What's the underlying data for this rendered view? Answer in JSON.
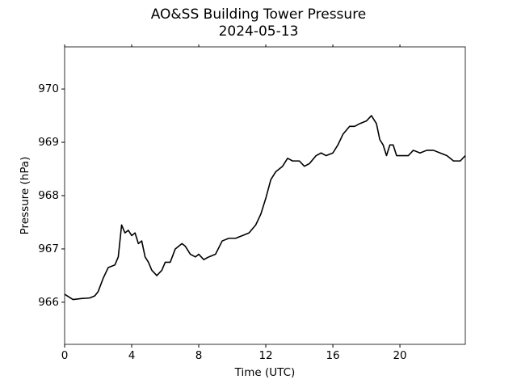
{
  "chart_data": {
    "type": "line",
    "title": "AO&SS Building Tower Pressure",
    "subtitle": "2024-05-13",
    "xlabel": "Time (UTC)",
    "ylabel": "Pressure (hPa)",
    "xlim": [
      0,
      23.9
    ],
    "ylim": [
      965.21,
      970.79
    ],
    "xticks": [
      0,
      4,
      8,
      12,
      16,
      20
    ],
    "yticks": [
      966,
      967,
      968,
      969,
      970
    ],
    "x": [
      0,
      0.25,
      0.5,
      1.0,
      1.5,
      1.8,
      2.0,
      2.3,
      2.6,
      3.0,
      3.2,
      3.4,
      3.6,
      3.8,
      4.0,
      4.2,
      4.4,
      4.6,
      4.8,
      5.0,
      5.2,
      5.5,
      5.8,
      6.0,
      6.3,
      6.6,
      7.0,
      7.2,
      7.5,
      7.8,
      8.0,
      8.3,
      8.6,
      9.0,
      9.4,
      9.8,
      10.2,
      10.6,
      11.0,
      11.4,
      11.7,
      12.0,
      12.3,
      12.6,
      13.0,
      13.3,
      13.6,
      14.0,
      14.3,
      14.6,
      15.0,
      15.3,
      15.6,
      16.0,
      16.3,
      16.6,
      17.0,
      17.3,
      17.6,
      18.0,
      18.3,
      18.6,
      18.8,
      19.0,
      19.2,
      19.4,
      19.6,
      19.8,
      20.2,
      20.5,
      20.8,
      21.2,
      21.6,
      22.0,
      22.4,
      22.8,
      23.2,
      23.6,
      23.9
    ],
    "series": [
      {
        "color": "#000000",
        "values": [
          966.15,
          966.1,
          966.05,
          966.07,
          966.08,
          966.12,
          966.2,
          966.45,
          966.65,
          966.7,
          966.85,
          967.45,
          967.3,
          967.35,
          967.25,
          967.3,
          967.1,
          967.15,
          966.85,
          966.75,
          966.6,
          966.5,
          966.6,
          966.75,
          966.75,
          967.0,
          967.1,
          967.05,
          966.9,
          966.85,
          966.9,
          966.8,
          966.85,
          966.9,
          967.15,
          967.2,
          967.2,
          967.25,
          967.3,
          967.45,
          967.65,
          967.95,
          968.3,
          968.45,
          968.55,
          968.7,
          968.65,
          968.65,
          968.55,
          968.6,
          968.75,
          968.8,
          968.75,
          968.8,
          968.95,
          969.15,
          969.3,
          969.3,
          969.35,
          969.4,
          969.5,
          969.35,
          969.05,
          968.95,
          968.75,
          968.95,
          968.95,
          968.75,
          968.75,
          968.75,
          968.85,
          968.8,
          968.85,
          968.85,
          968.8,
          968.75,
          968.65,
          968.65,
          968.75
        ]
      }
    ]
  }
}
